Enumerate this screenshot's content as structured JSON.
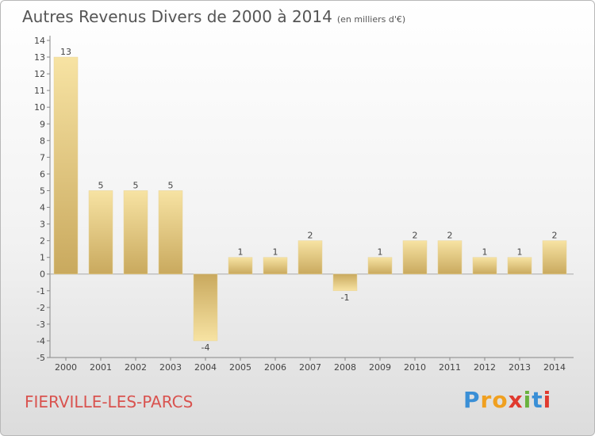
{
  "title": "Autres Revenus Divers de 2000 à 2014",
  "unit_note": "(en milliers d'€)",
  "commune": "FIERVILLE-LES-PARCS",
  "logo": {
    "letters": [
      "P",
      "r",
      "o",
      "x",
      "i",
      "t",
      "i"
    ],
    "colors": [
      "#3a8fd6",
      "#f0a020",
      "#f0a020",
      "#e03a2f",
      "#6ab23e",
      "#3a8fd6",
      "#e03a2f"
    ]
  },
  "colors": {
    "bar_light": "#f7e3a3",
    "bar_dark": "#c9a95e",
    "axis": "#888888",
    "title": "#555555",
    "commune": "#d9534f"
  },
  "chart_data": {
    "type": "bar",
    "categories": [
      "2000",
      "2001",
      "2002",
      "2003",
      "2004",
      "2005",
      "2006",
      "2007",
      "2008",
      "2009",
      "2010",
      "2011",
      "2012",
      "2013",
      "2014"
    ],
    "values": [
      13,
      5,
      5,
      5,
      -4,
      1,
      1,
      2,
      -1,
      1,
      2,
      2,
      1,
      1,
      2
    ],
    "value_labels": [
      "13",
      "5",
      "5",
      "5",
      "-4",
      "1",
      "1",
      "2",
      "-1",
      "1",
      "2",
      "2",
      "1",
      "1",
      "2"
    ],
    "yticks": [
      "-5",
      "-4",
      "-3",
      "-2",
      "-1",
      "0",
      "1",
      "2",
      "3",
      "4",
      "5",
      "6",
      "7",
      "8",
      "9",
      "10",
      "11",
      "12",
      "13",
      "14"
    ],
    "title": "Autres Revenus Divers de 2000 à 2014",
    "xlabel": "",
    "ylabel": "",
    "ylim": [
      -5,
      14
    ],
    "grid": false,
    "legend": "none"
  }
}
